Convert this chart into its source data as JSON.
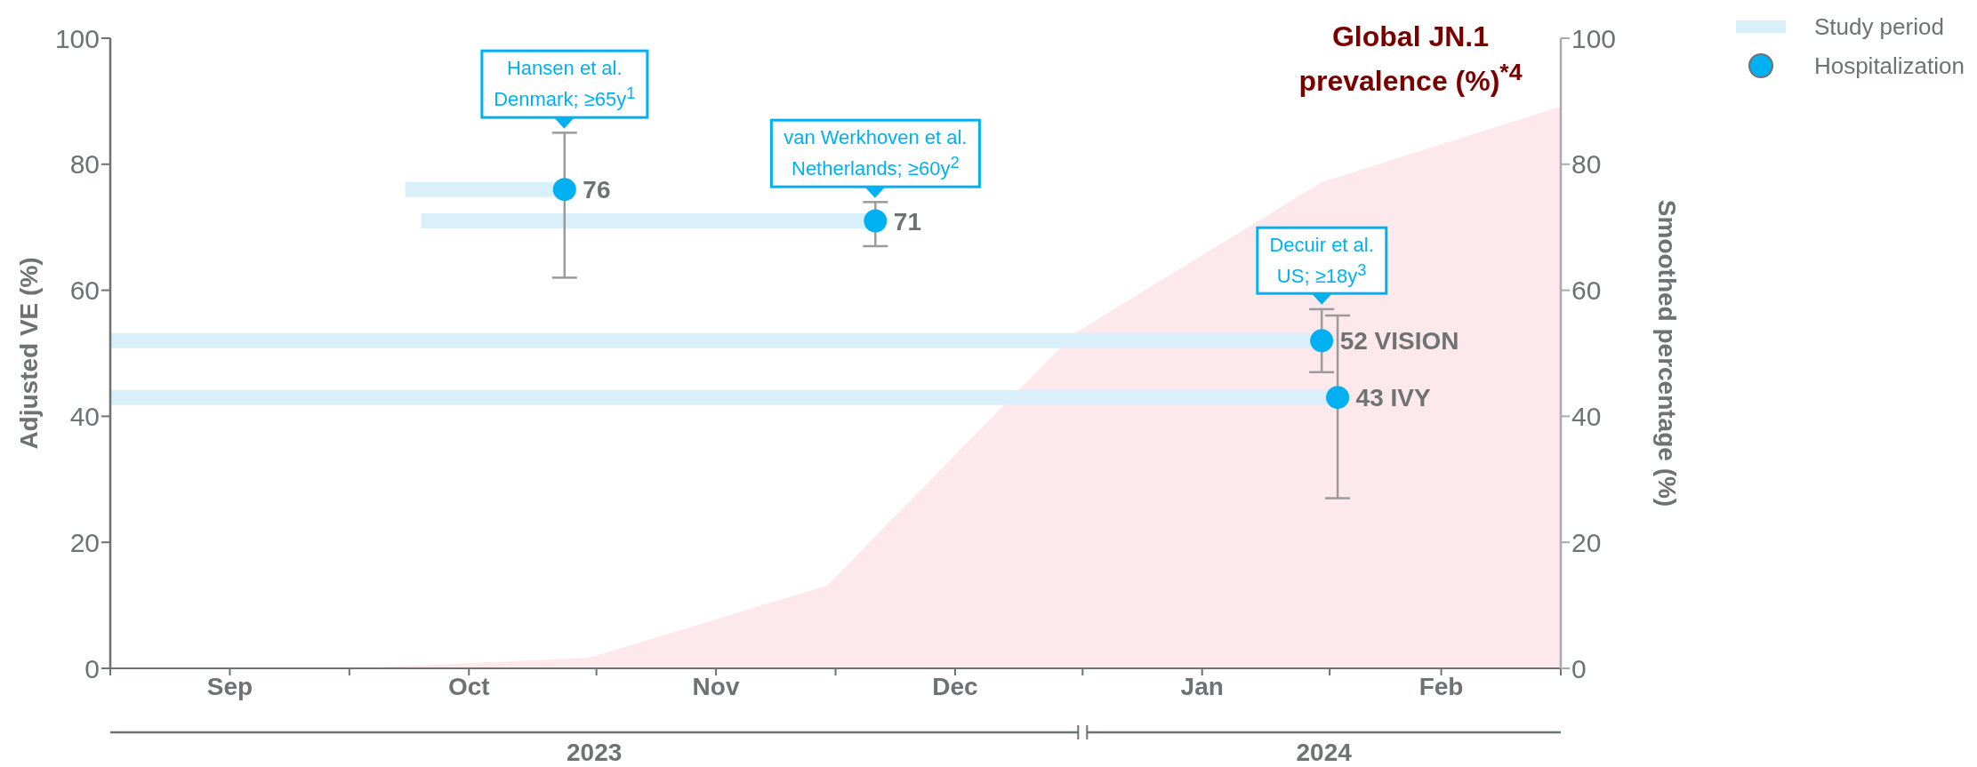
{
  "chart_data": {
    "type": "scatter",
    "ylabel": "Adjusted VE (%)",
    "y2label": "Smoothed percentage (%)",
    "xlim": [
      "2023-09-01",
      "2024-03-01"
    ],
    "xticks": [
      {
        "value": "2023-09-01",
        "label": null
      },
      {
        "value": "2023-09-16",
        "label": "Sep"
      },
      {
        "value": "2023-10-01",
        "label": null
      },
      {
        "value": "2023-10-16",
        "label": "Oct"
      },
      {
        "value": "2023-11-01",
        "label": null
      },
      {
        "value": "2023-11-16",
        "label": "Nov"
      },
      {
        "value": "2023-12-01",
        "label": null
      },
      {
        "value": "2023-12-16",
        "label": "Dec"
      },
      {
        "value": "2024-01-01",
        "label": null
      },
      {
        "value": "2024-01-16",
        "label": "Jan"
      },
      {
        "value": "2024-02-01",
        "label": null
      },
      {
        "value": "2024-02-15",
        "label": "Feb"
      },
      {
        "value": "2024-03-01",
        "label": null
      }
    ],
    "ylim": [
      0,
      100
    ],
    "yticks": [
      0,
      20,
      40,
      60,
      80,
      100
    ],
    "y2lim": [
      0,
      100
    ],
    "y2ticks": [
      0,
      20,
      40,
      60,
      80,
      100
    ],
    "legend": "top right",
    "line_style": "solid",
    "series": [
      {
        "name": "Global JN.1 prevalence (%)$^{*4}$",
        "type": "area",
        "axis": "y2",
        "color": "#fde8ec",
        "x": [
          "2023-09-01",
          "2023-10-04",
          "2023-10-31",
          "2023-11-30",
          "2023-12-31",
          "2024-01-31",
          "2024-03-01"
        ],
        "values": [
          0,
          0,
          1.5,
          13,
          53,
          77,
          89
        ]
      },
      {
        "name": "Study period",
        "type": "line",
        "color": "#d9eff9",
        "x": [
          "2023-10-08",
          "2023-10-28"
        ],
        "values": [
          76,
          76
        ]
      },
      {
        "type": "line",
        "color": "#d9eff9",
        "x": [
          "2023-10-10",
          "2023-12-06"
        ],
        "values": [
          71,
          71
        ]
      },
      {
        "type": "line",
        "color": "#d9eff9",
        "x": [
          "2023-09-01",
          "2024-01-31"
        ],
        "values": [
          52,
          52
        ]
      },
      {
        "type": "line",
        "color": "#d9eff9",
        "x": [
          "2023-09-01",
          "2024-02-02"
        ],
        "values": [
          43,
          43
        ]
      },
      {
        "name": "Hospitalization",
        "marker": "circle",
        "color": "#00b0f0",
        "x": [
          "2023-10-28",
          "2023-12-06",
          "2024-01-31",
          "2024-02-02"
        ],
        "values": [
          76,
          71,
          52,
          43
        ],
        "errors": [
          [
            62,
            85
          ],
          [
            67,
            74
          ],
          [
            47,
            57
          ],
          [
            27,
            56
          ]
        ],
        "value_labels": [
          "76",
          "71",
          "52 VISION",
          "43 IVY"
        ]
      }
    ],
    "annotations": [
      {
        "text": "Hansen et al.\nDenmark; ≥65y$^{1}$",
        "x": "2023-10-28",
        "y": 85
      },
      {
        "text": "van Werkhoven et al.\nNetherlands; ≥60y$^{2}$",
        "x": "2023-12-06",
        "y": 74
      },
      {
        "text": "Decuir et al.\nUS; ≥18y$^{3}$",
        "x": "2024-01-31",
        "y": 57
      },
      "2023",
      "2024"
    ]
  }
}
